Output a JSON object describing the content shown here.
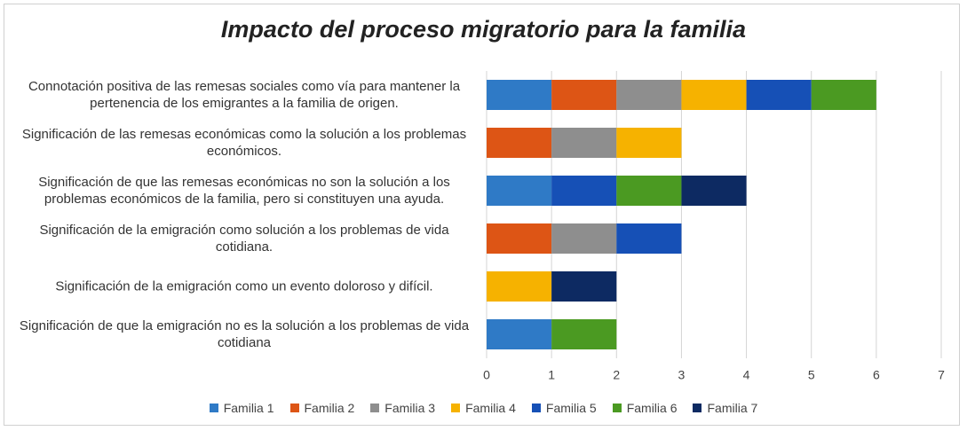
{
  "chart_data": {
    "type": "stacked-barh",
    "title": "Impacto del proceso migratorio para la familia",
    "categories": [
      "Connotación positiva de las remesas sociales como vía para mantener la pertenencia de los emigrantes a la familia de origen.",
      "Significación de las remesas económicas como la solución a los problemas económicos.",
      "Significación de  que las remesas económicas  no son la solución  a los problemas económicos de la familia, pero si constituyen una ayuda.",
      "Significación de la emigración como solución a los problemas de vida cotidiana.",
      "Significación de la emigración como un evento doloroso y difícil.",
      "Significación de que la emigración no es la solución a los problemas de vida cotidiana"
    ],
    "series": [
      {
        "name": "Familia 1",
        "color": "#2f7ac6",
        "values": [
          1,
          0,
          1,
          0,
          0,
          1
        ]
      },
      {
        "name": "Familia 2",
        "color": "#dd5515",
        "values": [
          1,
          1,
          0,
          1,
          0,
          0
        ]
      },
      {
        "name": "Familia 3",
        "color": "#8e8e8e",
        "values": [
          1,
          1,
          0,
          1,
          0,
          0
        ]
      },
      {
        "name": "Familia 4",
        "color": "#f6b200",
        "values": [
          1,
          1,
          0,
          0,
          1,
          0
        ]
      },
      {
        "name": "Familia 5",
        "color": "#1650b6",
        "values": [
          1,
          0,
          1,
          1,
          0,
          0
        ]
      },
      {
        "name": "Familia 6",
        "color": "#4b9a22",
        "values": [
          1,
          0,
          1,
          0,
          0,
          1
        ]
      },
      {
        "name": "Familia 7",
        "color": "#0d2a62",
        "values": [
          0,
          0,
          1,
          0,
          1,
          0
        ]
      }
    ],
    "xlim": [
      0,
      7
    ],
    "xticks": [
      0,
      1,
      2,
      3,
      4,
      5,
      6,
      7
    ],
    "grid": true,
    "legend": "bottom"
  }
}
